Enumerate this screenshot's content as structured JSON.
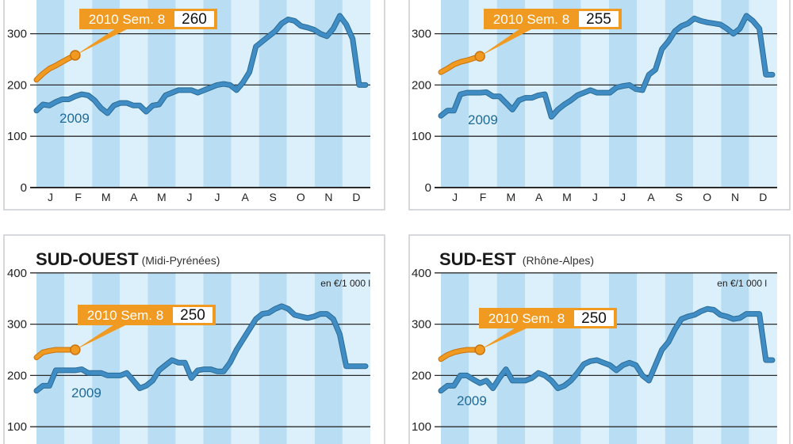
{
  "months": [
    "J",
    "F",
    "M",
    "A",
    "M",
    "J",
    "J",
    "A",
    "S",
    "O",
    "N",
    "D"
  ],
  "chart_data": [
    {
      "type": "line",
      "title": "",
      "subtitle": "",
      "unit_note": "",
      "yticks": [
        0,
        100,
        200,
        300
      ],
      "ylim": [
        0,
        400
      ],
      "grid": true,
      "series": [
        {
          "name": "2009",
          "color": "#3f8dc4",
          "values": [
            150,
            162,
            160,
            167,
            172,
            172,
            178,
            182,
            180,
            170,
            155,
            145,
            160,
            165,
            165,
            160,
            160,
            148,
            160,
            162,
            180,
            185,
            190,
            190,
            190,
            185,
            190,
            195,
            200,
            202,
            200,
            190,
            205,
            225,
            275,
            285,
            295,
            305,
            320,
            328,
            325,
            315,
            312,
            308,
            300,
            295,
            310,
            335,
            318,
            290,
            200,
            200
          ]
        },
        {
          "name": "2010",
          "color": "#f09a21",
          "values": [
            210,
            222,
            232,
            238,
            245,
            252,
            258
          ]
        }
      ],
      "callout": {
        "label": "2010 Sem. 8",
        "value": "260"
      }
    },
    {
      "type": "line",
      "title": "",
      "subtitle": "",
      "unit_note": "",
      "yticks": [
        0,
        100,
        200,
        300
      ],
      "ylim": [
        0,
        400
      ],
      "grid": true,
      "series": [
        {
          "name": "2009",
          "color": "#3f8dc4",
          "values": [
            140,
            150,
            150,
            182,
            185,
            185,
            185,
            186,
            178,
            178,
            165,
            152,
            170,
            175,
            175,
            180,
            182,
            138,
            152,
            162,
            170,
            180,
            185,
            190,
            185,
            185,
            185,
            195,
            198,
            200,
            192,
            190,
            220,
            230,
            270,
            285,
            305,
            315,
            320,
            330,
            325,
            322,
            320,
            318,
            310,
            300,
            310,
            335,
            325,
            310,
            220,
            220
          ]
        },
        {
          "name": "2010",
          "color": "#f09a21",
          "values": [
            225,
            232,
            240,
            245,
            248,
            252,
            256
          ]
        }
      ],
      "callout": {
        "label": "2010 Sem. 8",
        "value": "255"
      }
    },
    {
      "type": "line",
      "title": "SUD-OUEST",
      "subtitle": "(Midi-Pyrénées)",
      "unit_note": "en €/1 000 l",
      "yticks": [
        100,
        200,
        300,
        400
      ],
      "ylim": [
        0,
        400
      ],
      "grid": true,
      "series": [
        {
          "name": "2009",
          "color": "#3f8dc4",
          "values": [
            170,
            180,
            180,
            210,
            210,
            210,
            210,
            212,
            205,
            205,
            205,
            200,
            200,
            200,
            205,
            190,
            175,
            180,
            190,
            210,
            220,
            230,
            225,
            225,
            195,
            210,
            212,
            212,
            208,
            208,
            225,
            250,
            270,
            290,
            310,
            320,
            322,
            330,
            335,
            330,
            318,
            315,
            312,
            315,
            320,
            320,
            310,
            280,
            218,
            218,
            218,
            218
          ]
        },
        {
          "name": "2010",
          "color": "#f09a21",
          "values": [
            235,
            245,
            248,
            250,
            250,
            250,
            250
          ]
        }
      ],
      "callout": {
        "label": "2010 Sem. 8",
        "value": "250"
      }
    },
    {
      "type": "line",
      "title": "SUD-EST",
      "subtitle": "(Rhône-Alpes)",
      "unit_note": "en €/1 000 l",
      "yticks": [
        100,
        200,
        300,
        400
      ],
      "ylim": [
        0,
        400
      ],
      "grid": true,
      "series": [
        {
          "name": "2009",
          "color": "#3f8dc4",
          "values": [
            170,
            180,
            180,
            200,
            200,
            192,
            185,
            190,
            175,
            195,
            212,
            190,
            190,
            190,
            195,
            205,
            200,
            190,
            175,
            180,
            190,
            205,
            222,
            228,
            230,
            225,
            220,
            210,
            220,
            225,
            220,
            200,
            190,
            220,
            250,
            265,
            290,
            310,
            315,
            318,
            325,
            330,
            328,
            318,
            315,
            310,
            312,
            320,
            320,
            320,
            230,
            230
          ]
        },
        {
          "name": "2010",
          "color": "#f09a21",
          "values": [
            232,
            240,
            245,
            248,
            250,
            250,
            250
          ]
        }
      ],
      "callout": {
        "label": "2010 Sem. 8",
        "value": "250"
      }
    }
  ]
}
